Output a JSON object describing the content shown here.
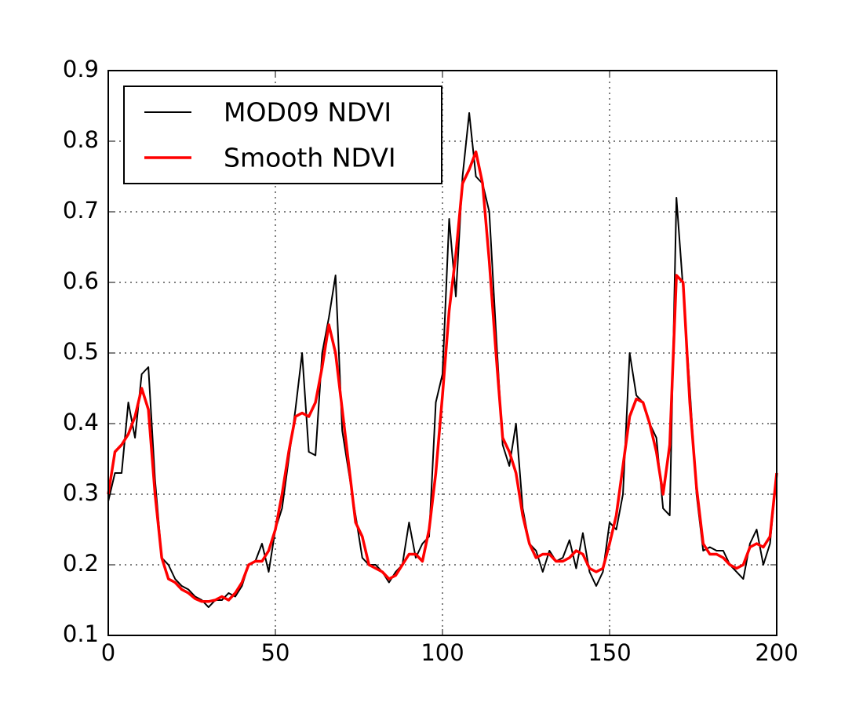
{
  "chart_data": {
    "type": "line",
    "x": [
      0,
      2,
      4,
      6,
      8,
      10,
      12,
      14,
      16,
      18,
      20,
      22,
      24,
      26,
      28,
      30,
      32,
      34,
      36,
      38,
      40,
      42,
      44,
      46,
      48,
      50,
      52,
      54,
      56,
      58,
      60,
      62,
      64,
      66,
      68,
      70,
      72,
      74,
      76,
      78,
      80,
      82,
      84,
      86,
      88,
      90,
      92,
      94,
      96,
      98,
      100,
      102,
      104,
      106,
      108,
      110,
      112,
      114,
      116,
      118,
      120,
      122,
      124,
      126,
      128,
      130,
      132,
      134,
      136,
      138,
      140,
      142,
      144,
      146,
      148,
      150,
      152,
      154,
      156,
      158,
      160,
      162,
      164,
      166,
      168,
      170,
      172,
      174,
      176,
      178,
      180,
      182,
      184,
      186,
      188,
      190,
      192,
      194,
      196,
      198,
      200
    ],
    "series": [
      {
        "name": "MOD09 NDVI",
        "color": "#000000",
        "width": 2,
        "values": [
          0.29,
          0.33,
          0.33,
          0.43,
          0.38,
          0.47,
          0.48,
          0.32,
          0.21,
          0.2,
          0.18,
          0.17,
          0.165,
          0.155,
          0.15,
          0.14,
          0.15,
          0.15,
          0.16,
          0.155,
          0.17,
          0.2,
          0.205,
          0.23,
          0.19,
          0.25,
          0.28,
          0.35,
          0.42,
          0.5,
          0.36,
          0.355,
          0.5,
          0.55,
          0.61,
          0.39,
          0.33,
          0.27,
          0.21,
          0.2,
          0.2,
          0.19,
          0.175,
          0.19,
          0.2,
          0.26,
          0.21,
          0.23,
          0.24,
          0.43,
          0.47,
          0.69,
          0.58,
          0.75,
          0.84,
          0.75,
          0.74,
          0.7,
          0.53,
          0.37,
          0.34,
          0.4,
          0.28,
          0.23,
          0.22,
          0.19,
          0.22,
          0.205,
          0.21,
          0.235,
          0.195,
          0.245,
          0.19,
          0.17,
          0.19,
          0.26,
          0.25,
          0.3,
          0.5,
          0.44,
          0.43,
          0.4,
          0.38,
          0.28,
          0.27,
          0.72,
          0.59,
          0.45,
          0.3,
          0.22,
          0.225,
          0.22,
          0.22,
          0.2,
          0.19,
          0.18,
          0.23,
          0.25,
          0.2,
          0.23,
          0.33
        ]
      },
      {
        "name": "Smooth NDVI",
        "color": "#ff0000",
        "width": 3.5,
        "values": [
          0.3,
          0.36,
          0.37,
          0.385,
          0.41,
          0.45,
          0.42,
          0.3,
          0.21,
          0.18,
          0.175,
          0.165,
          0.16,
          0.152,
          0.148,
          0.148,
          0.15,
          0.155,
          0.15,
          0.16,
          0.175,
          0.2,
          0.205,
          0.205,
          0.22,
          0.25,
          0.3,
          0.36,
          0.41,
          0.415,
          0.41,
          0.43,
          0.48,
          0.54,
          0.5,
          0.42,
          0.34,
          0.26,
          0.24,
          0.2,
          0.195,
          0.19,
          0.18,
          0.185,
          0.2,
          0.215,
          0.215,
          0.205,
          0.25,
          0.33,
          0.44,
          0.56,
          0.64,
          0.74,
          0.76,
          0.785,
          0.74,
          0.63,
          0.5,
          0.38,
          0.36,
          0.33,
          0.27,
          0.23,
          0.21,
          0.215,
          0.215,
          0.205,
          0.205,
          0.21,
          0.22,
          0.215,
          0.195,
          0.19,
          0.195,
          0.23,
          0.27,
          0.34,
          0.41,
          0.435,
          0.43,
          0.4,
          0.36,
          0.3,
          0.37,
          0.61,
          0.6,
          0.43,
          0.31,
          0.23,
          0.215,
          0.215,
          0.21,
          0.2,
          0.195,
          0.2,
          0.225,
          0.23,
          0.225,
          0.24,
          0.33
        ]
      }
    ],
    "xlim": [
      0,
      200
    ],
    "xticks": [
      0,
      50,
      100,
      150,
      200
    ],
    "ylim": [
      0.1,
      0.9
    ],
    "yticks": [
      0.1,
      0.2,
      0.3,
      0.4,
      0.5,
      0.6,
      0.7,
      0.8,
      0.9
    ],
    "grid": true,
    "legend": "upper left"
  }
}
